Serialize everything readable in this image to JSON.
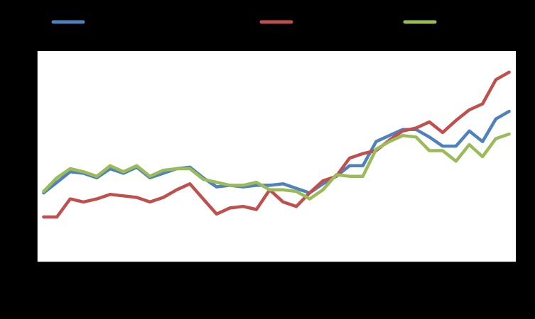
{
  "chart_data": {
    "type": "line",
    "title": "",
    "xlabel": "",
    "ylabel": "",
    "grid": false,
    "legend_position": "top",
    "x_count": 36,
    "ylim": [
      0,
      7
    ],
    "y_tick_count": 8,
    "x_tick_count": 19,
    "series": [
      {
        "color": "#4f81bd",
        "values": [
          2.3,
          2.65,
          3.0,
          2.95,
          2.8,
          3.1,
          2.95,
          3.15,
          2.8,
          2.95,
          3.1,
          3.15,
          2.8,
          2.5,
          2.55,
          2.5,
          2.55,
          2.55,
          2.6,
          2.45,
          2.3,
          2.6,
          2.85,
          3.2,
          3.2,
          4.0,
          4.2,
          4.4,
          4.4,
          4.15,
          3.85,
          3.85,
          4.35,
          4.0,
          4.75,
          5.0
        ]
      },
      {
        "color": "#c0504d",
        "values": [
          1.5,
          1.5,
          2.1,
          2.0,
          2.1,
          2.25,
          2.2,
          2.15,
          2.0,
          2.15,
          2.4,
          2.6,
          2.1,
          1.6,
          1.8,
          1.85,
          1.75,
          2.4,
          2.0,
          1.85,
          2.3,
          2.7,
          2.85,
          3.45,
          3.6,
          3.7,
          4.05,
          4.35,
          4.45,
          4.65,
          4.3,
          4.7,
          5.05,
          5.25,
          6.05,
          6.3
        ]
      },
      {
        "color": "#9bbb59",
        "values": [
          2.35,
          2.8,
          3.1,
          3.0,
          2.85,
          3.2,
          3.0,
          3.2,
          2.85,
          3.05,
          3.1,
          3.1,
          2.75,
          2.65,
          2.55,
          2.55,
          2.65,
          2.4,
          2.4,
          2.35,
          2.1,
          2.4,
          2.9,
          2.85,
          2.85,
          3.75,
          4.0,
          4.2,
          4.15,
          3.7,
          3.7,
          3.35,
          3.9,
          3.5,
          4.1,
          4.25
        ]
      }
    ]
  }
}
